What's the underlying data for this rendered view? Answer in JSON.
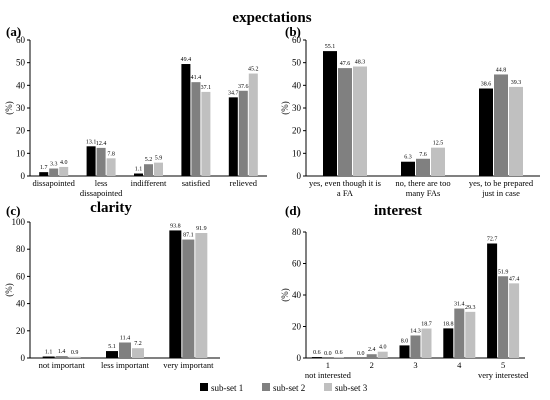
{
  "sections": {
    "expectations": "expectations",
    "clarity": "clarity",
    "interest": "interest"
  },
  "colors": {
    "sub-set 1": "#000000",
    "sub-set 2": "#808080",
    "sub-set 3": "#c0c0c0"
  },
  "legend": [
    "sub-set 1",
    "sub-set 2",
    "sub-set 3"
  ],
  "chart_data": [
    {
      "panel": "(a)",
      "type": "bar",
      "ylabel": "(%)",
      "ylim": [
        0,
        60
      ],
      "yticks": [
        0,
        10,
        20,
        30,
        40,
        50,
        60
      ],
      "categories": [
        [
          "dissapointed"
        ],
        [
          "less",
          "dissapointed"
        ],
        [
          "indifferent"
        ],
        [
          "satisfied"
        ],
        [
          "relieved"
        ]
      ],
      "series": [
        {
          "name": "sub-set 1",
          "values": [
            1.7,
            13.1,
            1.1,
            49.4,
            34.7
          ]
        },
        {
          "name": "sub-set 2",
          "values": [
            3.3,
            12.4,
            5.2,
            41.4,
            37.6
          ]
        },
        {
          "name": "sub-set 3",
          "values": [
            4.0,
            7.8,
            5.9,
            37.1,
            45.2
          ]
        }
      ],
      "labels": [
        [
          "1.7",
          "13.1",
          "1.1",
          "49.4",
          "34.7"
        ],
        [
          "3.3",
          "12.4",
          "5.2",
          "41.4",
          "37.6"
        ],
        [
          "4.0",
          "7.8",
          "5.9",
          "37.1",
          "45.2"
        ]
      ]
    },
    {
      "panel": "(b)",
      "type": "bar",
      "ylabel": "(%)",
      "ylim": [
        0,
        60
      ],
      "yticks": [
        0,
        10,
        20,
        30,
        40,
        50,
        60
      ],
      "categories": [
        [
          "yes, even though it is",
          "a FA"
        ],
        [
          "no, there are too",
          "many FAs"
        ],
        [
          "yes, to be prepared",
          "just in case"
        ]
      ],
      "series": [
        {
          "name": "sub-set 1",
          "values": [
            55.1,
            6.3,
            38.6
          ]
        },
        {
          "name": "sub-set 2",
          "values": [
            47.6,
            7.6,
            44.8
          ]
        },
        {
          "name": "sub-set 3",
          "values": [
            48.3,
            12.5,
            39.3
          ]
        }
      ],
      "labels": [
        [
          "55.1",
          "6.3",
          "38.6"
        ],
        [
          "47.6",
          "7.6",
          "44.8"
        ],
        [
          "48.3",
          "12.5",
          "39.3"
        ]
      ]
    },
    {
      "panel": "(c)",
      "type": "bar",
      "ylabel": "(%)",
      "ylim": [
        0,
        100
      ],
      "yticks": [
        0,
        20,
        40,
        60,
        80,
        100
      ],
      "categories": [
        [
          "not important"
        ],
        [
          "less important"
        ],
        [
          "very important"
        ]
      ],
      "series": [
        {
          "name": "sub-set 1",
          "values": [
            1.1,
            5.1,
            93.8
          ]
        },
        {
          "name": "sub-set 2",
          "values": [
            1.4,
            11.4,
            87.1
          ]
        },
        {
          "name": "sub-set 3",
          "values": [
            0.9,
            7.2,
            91.9
          ]
        }
      ],
      "labels": [
        [
          "1.1",
          "5.1",
          "93.8"
        ],
        [
          "1.4",
          "11.4",
          "87.1"
        ],
        [
          "0.9",
          "7.2",
          "91.9"
        ]
      ]
    },
    {
      "panel": "(d)",
      "type": "bar",
      "ylabel": "(%)",
      "ylim": [
        0,
        80
      ],
      "yticks": [
        0,
        20,
        40,
        60,
        80
      ],
      "categories": [
        [
          "1",
          "not interested"
        ],
        [
          "2"
        ],
        [
          "3"
        ],
        [
          "4"
        ],
        [
          "5",
          "very interested"
        ]
      ],
      "series": [
        {
          "name": "sub-set 1",
          "values": [
            0.6,
            0.0,
            8.0,
            18.8,
            72.7
          ]
        },
        {
          "name": "sub-set 2",
          "values": [
            0.0,
            2.4,
            14.3,
            31.4,
            51.9
          ]
        },
        {
          "name": "sub-set 3",
          "values": [
            0.6,
            4.0,
            18.7,
            29.3,
            47.4
          ]
        }
      ],
      "labels": [
        [
          "0.6",
          "0.0",
          "8.0",
          "18.8",
          "72.7"
        ],
        [
          "0.0",
          "2.4",
          "14.3",
          "31.4",
          "51.9"
        ],
        [
          "0.6",
          "4.0",
          "18.7",
          "29.3",
          "47.4"
        ]
      ]
    }
  ]
}
